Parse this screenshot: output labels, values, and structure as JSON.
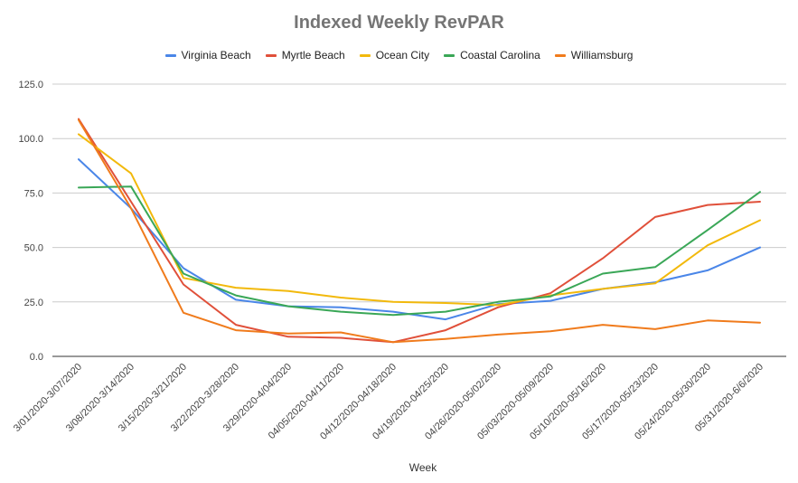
{
  "chart_data": {
    "type": "line",
    "title": "Indexed Weekly RevPAR",
    "xlabel": "Week",
    "ylabel": "",
    "ylim": [
      0,
      125
    ],
    "yticks": [
      "0.0",
      "25.0",
      "50.0",
      "75.0",
      "100.0",
      "125.0"
    ],
    "grid": true,
    "legend_position": "top",
    "categories": [
      "3/01/2020-3/07/2020",
      "3/08/2020-3/14/2020",
      "3/15/2020-3/21/2020",
      "3/22/2020-3/28/2020",
      "3/29/2020-4/04/2020",
      "04/05/2020-04/11/2020",
      "04/12/2020-04/18/2020",
      "04/19/2020-04/25/2020",
      "04/26/2020-05/02/2020",
      "05/03/2020-05/09/2020",
      "05/10/2020-05/16/2020",
      "05/17/2020-05/23/2020",
      "05/24/2020-05/30/2020",
      "05/31/2020-6/6/2020"
    ],
    "series": [
      {
        "name": "Virginia Beach",
        "color": "#4a86e8",
        "values": [
          90.5,
          68,
          40.5,
          26,
          23,
          22.5,
          20.5,
          17,
          24,
          25.5,
          31,
          34,
          39.5,
          50
        ]
      },
      {
        "name": "Myrtle Beach",
        "color": "#e0503a",
        "values": [
          109,
          71,
          33,
          14.5,
          9,
          8.5,
          6.5,
          12,
          22.5,
          29,
          45,
          64,
          69.5,
          71
        ]
      },
      {
        "name": "Ocean City",
        "color": "#f2b90c",
        "values": [
          102,
          84,
          36,
          31.5,
          30,
          27,
          25,
          24.5,
          23.5,
          28,
          31,
          33.5,
          51,
          62.5
        ]
      },
      {
        "name": "Coastal Carolina",
        "color": "#3aa757",
        "values": [
          77.5,
          78,
          38,
          28,
          23,
          20.5,
          19,
          20.5,
          25,
          27.5,
          38,
          41,
          58,
          75.5
        ]
      },
      {
        "name": "Williamsburg",
        "color": "#f07b1c",
        "values": [
          108.5,
          68,
          20,
          12,
          10.5,
          11,
          6.5,
          8,
          10,
          11.5,
          14.5,
          12.5,
          16.5,
          15.5
        ]
      }
    ]
  }
}
